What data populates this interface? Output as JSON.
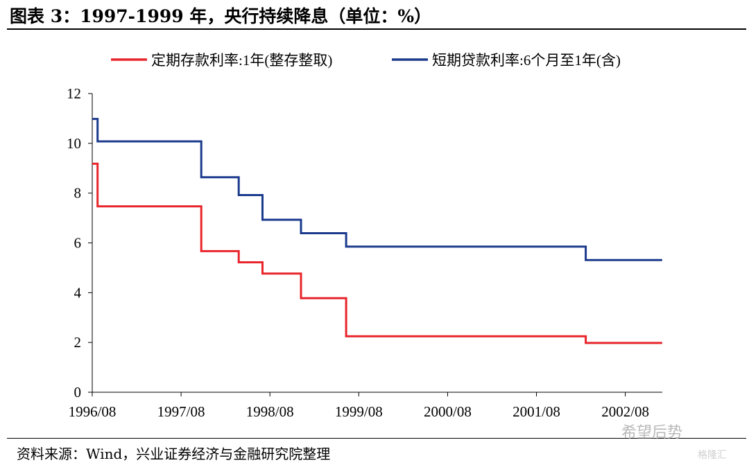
{
  "figure": {
    "title": "图表 3：1997-1999 年，央行持续降息（单位：%）",
    "source": "资料来源：Wind，兴业证券经济与金融研究院整理",
    "watermark": "希望后势",
    "watermark_small": "格隆汇"
  },
  "chart_data": {
    "type": "line",
    "step": true,
    "title": "",
    "xlabel": "",
    "ylabel": "",
    "x_range": [
      "1996-08",
      "2003-01"
    ],
    "ylim": [
      0,
      12
    ],
    "y_ticks": [
      0,
      2,
      4,
      6,
      8,
      10,
      12
    ],
    "x_ticks": [
      "1996/08",
      "1997/08",
      "1998/08",
      "1999/08",
      "2000/08",
      "2001/08",
      "2002/08"
    ],
    "grid": false,
    "legend_position": "top",
    "series": [
      {
        "name": "定期存款利率:1年(整存整取)",
        "color": "#e8252b",
        "points": [
          [
            "1996-08",
            9.18
          ],
          [
            "1996-08-23",
            7.47
          ],
          [
            "1997-10-23",
            5.67
          ],
          [
            "1998-03-25",
            5.22
          ],
          [
            "1998-07-01",
            4.77
          ],
          [
            "1998-12-07",
            3.78
          ],
          [
            "1999-06-10",
            2.25
          ],
          [
            "2002-02-21",
            1.98
          ],
          [
            "2002-12-31",
            1.98
          ]
        ]
      },
      {
        "name": "短期贷款利率:6个月至1年(含)",
        "color": "#1a3a8c",
        "points": [
          [
            "1996-08",
            10.98
          ],
          [
            "1996-08-23",
            10.08
          ],
          [
            "1997-10-23",
            8.64
          ],
          [
            "1998-03-25",
            7.92
          ],
          [
            "1998-07-01",
            6.93
          ],
          [
            "1998-12-07",
            6.39
          ],
          [
            "1999-06-10",
            5.85
          ],
          [
            "2002-02-21",
            5.31
          ],
          [
            "2002-12-31",
            5.31
          ]
        ]
      }
    ]
  }
}
